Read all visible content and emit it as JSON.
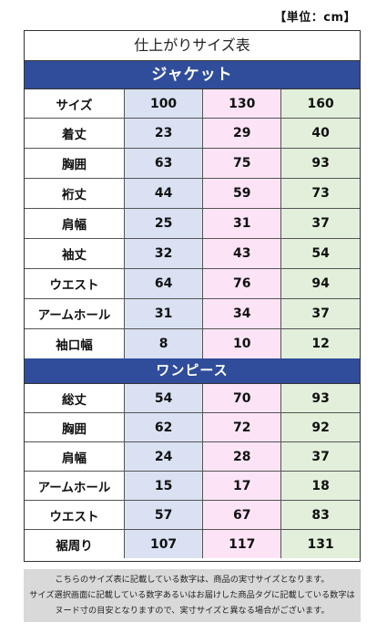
{
  "unit_label": "【単位：cm】",
  "title": "仕上がりサイズ表",
  "jacket": {
    "heading": "ジャケット",
    "size_label": "サイズ",
    "sizes": [
      "100",
      "130",
      "160"
    ],
    "rows": [
      {
        "label": "着丈",
        "values": [
          "23",
          "29",
          "40"
        ]
      },
      {
        "label": "胸囲",
        "values": [
          "63",
          "75",
          "93"
        ]
      },
      {
        "label": "裄丈",
        "values": [
          "44",
          "59",
          "73"
        ]
      },
      {
        "label": "肩幅",
        "values": [
          "25",
          "31",
          "37"
        ]
      },
      {
        "label": "袖丈",
        "values": [
          "32",
          "43",
          "54"
        ]
      },
      {
        "label": "ウエスト",
        "values": [
          "64",
          "76",
          "94"
        ]
      },
      {
        "label": "アームホール",
        "values": [
          "31",
          "34",
          "37"
        ]
      },
      {
        "label": "袖口幅",
        "values": [
          "8",
          "10",
          "12"
        ]
      }
    ]
  },
  "dress": {
    "heading": "ワンピース",
    "rows": [
      {
        "label": "総丈",
        "values": [
          "54",
          "70",
          "93"
        ]
      },
      {
        "label": "胸囲",
        "values": [
          "62",
          "72",
          "92"
        ]
      },
      {
        "label": "肩幅",
        "values": [
          "24",
          "28",
          "37"
        ]
      },
      {
        "label": "アームホール",
        "values": [
          "15",
          "17",
          "18"
        ]
      },
      {
        "label": "ウエスト",
        "values": [
          "57",
          "67",
          "83"
        ]
      },
      {
        "label": "裾周り",
        "values": [
          "107",
          "117",
          "131"
        ]
      }
    ]
  },
  "note_lines": [
    "こちらのサイズ表に記載している数字は、商品の実寸サイズとなります。",
    "サイズ選択画面に記載している数字あるいはお届けした商品タグに記載している数字は",
    "ヌード寸の目安となりますので、実寸サイズと異なる場合がございます。"
  ],
  "colors": {
    "header_blue": "#2f4d9a",
    "col_100": "#d9e1f2",
    "col_130": "#fce4f6",
    "col_160": "#e2efda",
    "note_bg": "#d9d9d9"
  }
}
